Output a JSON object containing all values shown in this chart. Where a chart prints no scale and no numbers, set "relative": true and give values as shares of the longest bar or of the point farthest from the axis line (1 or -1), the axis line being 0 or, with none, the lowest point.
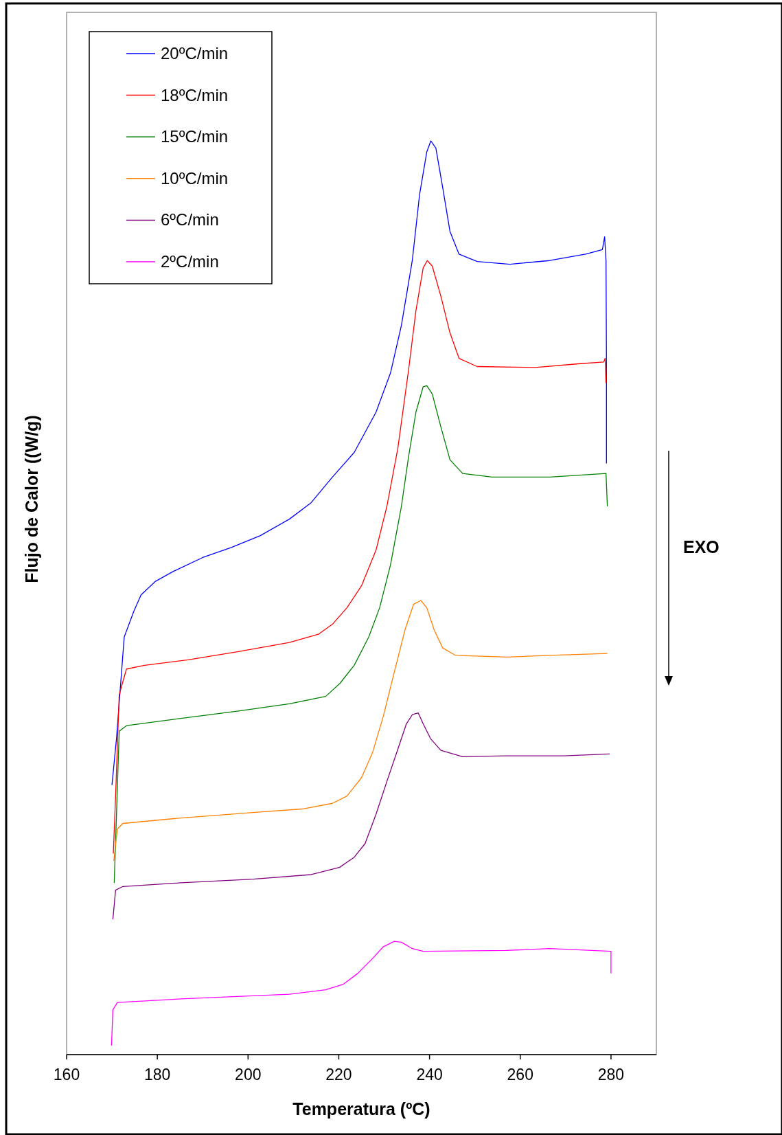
{
  "chart_data": {
    "type": "line",
    "relative": true,
    "xlabel": "Temperatura (ºC)",
    "ylabel": "Flujo de Calor ((W/g)",
    "xlim": [
      160,
      290
    ],
    "xticks": [
      160,
      180,
      200,
      220,
      240,
      260,
      280
    ],
    "legend": "top left",
    "grid": false,
    "marker": "none",
    "line_style": "solid",
    "annotations": [
      "EXO"
    ],
    "series": [
      {
        "name": "20ºC/min",
        "color": "#0000ff",
        "x": [
          170.0,
          171.0,
          172.7,
          174.8,
          176.4,
          179.6,
          183.6,
          190.0,
          196.3,
          202.7,
          209.1,
          213.9,
          218.6,
          223.4,
          228.2,
          231.4,
          233.8,
          236.2,
          237.8,
          239.4,
          240.3,
          241.4,
          242.9,
          244.5,
          246.5,
          250.5,
          257.7,
          266.5,
          274.4,
          278.1,
          278.6,
          278.9,
          279.0,
          279.0
        ],
        "values": [
          0.295,
          0.346,
          0.457,
          0.485,
          0.503,
          0.518,
          0.529,
          0.544,
          0.555,
          0.568,
          0.586,
          0.604,
          0.632,
          0.659,
          0.703,
          0.746,
          0.798,
          0.869,
          0.941,
          0.988,
          1.0,
          0.992,
          0.949,
          0.901,
          0.876,
          0.868,
          0.865,
          0.869,
          0.876,
          0.881,
          0.895,
          0.869,
          0.758,
          0.647
        ]
      },
      {
        "name": "18ºC/min",
        "color": "#ff0000",
        "x": [
          170.3,
          170.8,
          171.6,
          173.2,
          177.2,
          186.8,
          197.9,
          209.1,
          215.5,
          218.6,
          221.8,
          225.0,
          228.2,
          230.6,
          233.0,
          235.4,
          237.0,
          238.6,
          239.5,
          240.6,
          242.5,
          244.5,
          246.5,
          250.5,
          263.3,
          272.8,
          278.4,
          278.7,
          278.9
        ],
        "values": [
          0.22,
          0.283,
          0.394,
          0.422,
          0.426,
          0.432,
          0.441,
          0.451,
          0.46,
          0.471,
          0.489,
          0.513,
          0.552,
          0.6,
          0.663,
          0.75,
          0.814,
          0.861,
          0.869,
          0.863,
          0.83,
          0.79,
          0.762,
          0.753,
          0.752,
          0.756,
          0.758,
          0.762,
          0.735
        ]
      },
      {
        "name": "15ºC/min",
        "color": "#008000",
        "x": [
          170.5,
          171.6,
          173.2,
          185.2,
          197.9,
          209.1,
          217.1,
          220.2,
          223.4,
          226.6,
          229.0,
          231.4,
          233.8,
          235.4,
          237.0,
          238.6,
          239.4,
          240.6,
          242.5,
          244.5,
          247.3,
          253.8,
          266.5,
          278.9,
          279.2
        ],
        "values": [
          0.188,
          0.354,
          0.36,
          0.368,
          0.376,
          0.384,
          0.392,
          0.406,
          0.426,
          0.457,
          0.489,
          0.536,
          0.6,
          0.655,
          0.703,
          0.731,
          0.732,
          0.723,
          0.687,
          0.651,
          0.636,
          0.632,
          0.632,
          0.636,
          0.6
        ]
      },
      {
        "name": "10ºC/min",
        "color": "#ff8000",
        "x": [
          170.4,
          171.2,
          172.4,
          185.2,
          201.1,
          212.3,
          218.6,
          221.8,
          225.0,
          227.4,
          229.8,
          232.2,
          234.6,
          236.5,
          238.1,
          239.4,
          241.0,
          242.9,
          245.7,
          257.0,
          266.5,
          279.2
        ],
        "values": [
          0.212,
          0.247,
          0.253,
          0.259,
          0.265,
          0.269,
          0.275,
          0.283,
          0.303,
          0.33,
          0.37,
          0.418,
          0.465,
          0.493,
          0.497,
          0.489,
          0.465,
          0.445,
          0.437,
          0.435,
          0.437,
          0.439
        ]
      },
      {
        "name": "6ºC/min",
        "color": "#800080",
        "x": [
          170.2,
          170.8,
          172.4,
          185.2,
          201.1,
          213.9,
          220.2,
          223.4,
          225.8,
          228.2,
          230.6,
          233.0,
          234.9,
          236.2,
          237.5,
          238.6,
          240.2,
          242.5,
          247.3,
          256.9,
          269.6,
          279.7
        ],
        "values": [
          0.148,
          0.18,
          0.184,
          0.188,
          0.192,
          0.197,
          0.205,
          0.216,
          0.231,
          0.263,
          0.299,
          0.334,
          0.362,
          0.372,
          0.374,
          0.362,
          0.346,
          0.333,
          0.326,
          0.327,
          0.327,
          0.329
        ]
      },
      {
        "name": "2ºC/min",
        "color": "#ff00ff",
        "x": [
          169.9,
          170.2,
          171.2,
          185.2,
          209.1,
          217.1,
          221.0,
          224.2,
          227.4,
          229.8,
          232.2,
          233.8,
          236.2,
          238.6,
          256.9,
          266.5,
          280.0,
          280.0
        ],
        "values": [
          0.01,
          0.049,
          0.057,
          0.061,
          0.066,
          0.071,
          0.077,
          0.089,
          0.105,
          0.118,
          0.124,
          0.123,
          0.116,
          0.113,
          0.114,
          0.116,
          0.113,
          0.089
        ]
      }
    ]
  }
}
